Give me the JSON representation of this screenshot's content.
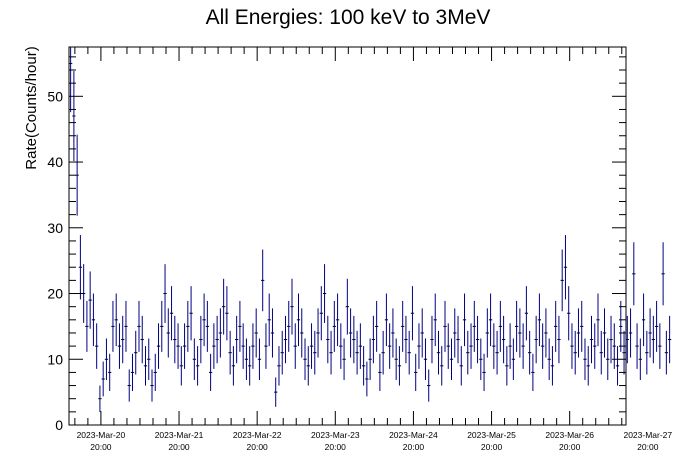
{
  "chart_data": {
    "type": "scatter",
    "title": "All Energies:  100 keV to 3MeV",
    "ylabel": "Rate(Counts/hour)",
    "xlabel": "",
    "ylim": [
      0,
      57.5
    ],
    "yticks": [
      0,
      10,
      20,
      30,
      40,
      50
    ],
    "x_axis": {
      "unit": "hours since 2023-Mar-20 00:00",
      "range": [
        10.2,
        181.3
      ],
      "tick_labels": [
        {
          "date": "2023-Mar-20",
          "time": "20:00"
        },
        {
          "date": "2023-Mar-21",
          "time": "20:00"
        },
        {
          "date": "2023-Mar-22",
          "time": "20:00"
        },
        {
          "date": "2023-Mar-23",
          "time": "20:00"
        },
        {
          "date": "2023-Mar-24",
          "time": "20:00"
        },
        {
          "date": "2023-Mar-25",
          "time": "20:00"
        },
        {
          "date": "2023-Mar-26",
          "time": "20:00"
        },
        {
          "date": "2023-Mar-27",
          "time": "20:00"
        }
      ]
    },
    "series": [
      {
        "marker": "error-bar",
        "color": "#000080",
        "first_bin_start": 10.2,
        "bin_hours": 1,
        "values": [
          55,
          47,
          38,
          24,
          20,
          15,
          19,
          16,
          12,
          4,
          7,
          10,
          8,
          15,
          16,
          12,
          13,
          15,
          6,
          8,
          11,
          15,
          13,
          9,
          10,
          6,
          8,
          12,
          15,
          20,
          14,
          17,
          13,
          12,
          9,
          12,
          15,
          17,
          10,
          9,
          13,
          16,
          15,
          8,
          12,
          13,
          14,
          18,
          17,
          11,
          9,
          13,
          15,
          12,
          10,
          9,
          12,
          14,
          10,
          22,
          12,
          16,
          14,
          5,
          9,
          11,
          13,
          15,
          18,
          12,
          16,
          14,
          10,
          9,
          12,
          11,
          14,
          17,
          20,
          13,
          11,
          15,
          16,
          12,
          10,
          18,
          14,
          13,
          11,
          12,
          9,
          7,
          10,
          13,
          15,
          8,
          11,
          16,
          12,
          14,
          10,
          9,
          15,
          13,
          11,
          17,
          8,
          12,
          14,
          10,
          6,
          13,
          16,
          11,
          9,
          15,
          12,
          10,
          14,
          13,
          9,
          16,
          11,
          12,
          15,
          13,
          10,
          8,
          14,
          16,
          12,
          11,
          15,
          13,
          9,
          12,
          10,
          15,
          14,
          12,
          17,
          11,
          8,
          13,
          16,
          12,
          14,
          10,
          9,
          15,
          13,
          22,
          24,
          17,
          12,
          11,
          14,
          15,
          10,
          9,
          13,
          12,
          16,
          11,
          14,
          10,
          13,
          12,
          9,
          15,
          11,
          13,
          14,
          23,
          12,
          10,
          16,
          11,
          14,
          13,
          15,
          12,
          23,
          11,
          13
        ]
      }
    ],
    "grid": false,
    "legend": "none"
  }
}
